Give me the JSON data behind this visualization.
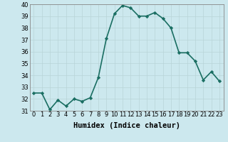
{
  "x": [
    0,
    1,
    2,
    3,
    4,
    5,
    6,
    7,
    8,
    9,
    10,
    11,
    12,
    13,
    14,
    15,
    16,
    17,
    18,
    19,
    20,
    21,
    22,
    23
  ],
  "y": [
    32.5,
    32.5,
    31.1,
    31.9,
    31.4,
    32.0,
    31.8,
    32.1,
    33.8,
    37.1,
    39.2,
    39.9,
    39.7,
    39.0,
    39.0,
    39.3,
    38.8,
    38.0,
    35.9,
    35.9,
    35.2,
    33.6,
    34.3,
    33.5
  ],
  "xlabel": "Humidex (Indice chaleur)",
  "xlim": [
    -0.5,
    23.5
  ],
  "ylim": [
    31,
    40
  ],
  "yticks": [
    31,
    32,
    33,
    34,
    35,
    36,
    37,
    38,
    39,
    40
  ],
  "xticks": [
    0,
    1,
    2,
    3,
    4,
    5,
    6,
    7,
    8,
    9,
    10,
    11,
    12,
    13,
    14,
    15,
    16,
    17,
    18,
    19,
    20,
    21,
    22,
    23
  ],
  "line_color": "#1a6e62",
  "marker": "D",
  "marker_size": 2.2,
  "background_color": "#cce8ee",
  "grid_color": "#b8d4d8",
  "tick_fontsize": 6.0,
  "xlabel_fontsize": 7.5,
  "line_width": 1.2
}
